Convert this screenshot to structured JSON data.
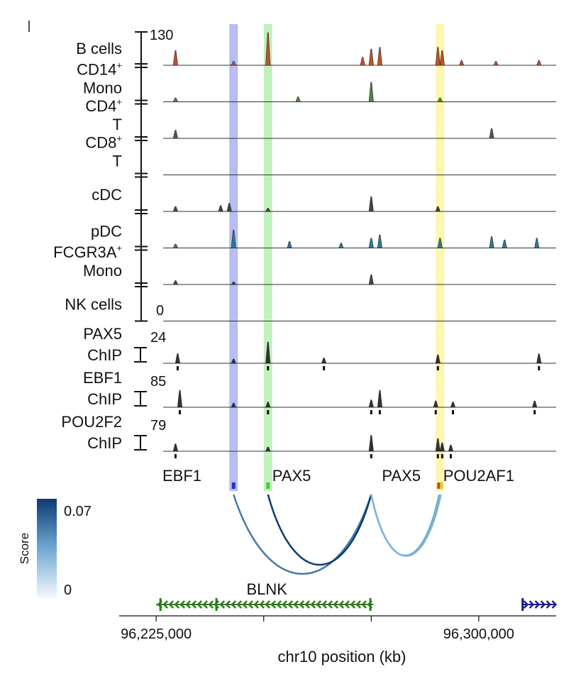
{
  "chart_data": {
    "type": "genome_tracks",
    "xlabel": "chr10 position (kb)",
    "xlim": [
      96223000,
      96318000
    ],
    "x_ticks": [
      {
        "value": 96225000,
        "label": "96,225,000"
      },
      {
        "value": 96300000,
        "label": "96,300,000"
      }
    ],
    "x_minor_ticks": [
      96250000,
      96275000
    ],
    "atac_group": {
      "ymax_label": "130",
      "ymin_label": "0",
      "tracks": [
        {
          "name": "B cells",
          "name_parts": [
            [
              "B cells",
              ""
            ]
          ],
          "color": "#c0522a",
          "peaks": [
            [
              96229500,
              0.45
            ],
            [
              96243000,
              0.12
            ],
            [
              96251000,
              1.0
            ],
            [
              96273000,
              0.25
            ],
            [
              96275000,
              0.5
            ],
            [
              96277000,
              0.55
            ],
            [
              96290500,
              0.55
            ],
            [
              96291500,
              0.45
            ],
            [
              96296000,
              0.15
            ],
            [
              96304000,
              0.12
            ],
            [
              96314000,
              0.15
            ]
          ]
        },
        {
          "name": "CD14+ Mono",
          "name_parts": [
            [
              "CD14",
              "+"
            ],
            [
              "Mono",
              ""
            ]
          ],
          "color": "#4a8a3a",
          "peaks": [
            [
              96229500,
              0.12
            ],
            [
              96258000,
              0.15
            ],
            [
              96275000,
              0.6
            ],
            [
              96291000,
              0.12
            ]
          ]
        },
        {
          "name": "CD4+ T",
          "name_parts": [
            [
              "CD4",
              "+"
            ],
            [
              "T",
              ""
            ]
          ],
          "color": "#555555",
          "peaks": [
            [
              96229500,
              0.25
            ],
            [
              96303000,
              0.3
            ]
          ]
        },
        {
          "name": "CD8+ T",
          "name_parts": [
            [
              "CD8",
              "+"
            ],
            [
              "T",
              ""
            ]
          ],
          "color": "#555555",
          "peaks": []
        },
        {
          "name": "cDC",
          "name_parts": [
            [
              "cDC",
              ""
            ]
          ],
          "color": "#3d4a3a",
          "peaks": [
            [
              96229500,
              0.15
            ],
            [
              96240000,
              0.18
            ],
            [
              96242000,
              0.25
            ],
            [
              96275000,
              0.45
            ],
            [
              96251000,
              0.1
            ],
            [
              96290500,
              0.15
            ]
          ]
        },
        {
          "name": "pDC",
          "name_parts": [
            [
              "pDC",
              ""
            ]
          ],
          "color": "#2a7a9a",
          "peaks": [
            [
              96229500,
              0.12
            ],
            [
              96243000,
              0.55
            ],
            [
              96256000,
              0.2
            ],
            [
              96268000,
              0.15
            ],
            [
              96275000,
              0.3
            ],
            [
              96277000,
              0.4
            ],
            [
              96291000,
              0.3
            ],
            [
              96303000,
              0.35
            ],
            [
              96306000,
              0.25
            ],
            [
              96313500,
              0.3
            ]
          ]
        },
        {
          "name": "FCGR3A+ Mono",
          "name_parts": [
            [
              "FCGR3A",
              "+"
            ],
            [
              "Mono",
              ""
            ]
          ],
          "color": "#3d4a3a",
          "peaks": [
            [
              96229500,
              0.12
            ],
            [
              96243000,
              0.08
            ],
            [
              96275000,
              0.3
            ]
          ]
        },
        {
          "name": "NK cells",
          "name_parts": [
            [
              "NK cells",
              ""
            ]
          ],
          "color": "#555555",
          "peaks": []
        }
      ]
    },
    "chip_tracks": [
      {
        "name": "PAX5 ChIP",
        "name_parts": [
          "PAX5",
          "ChIP"
        ],
        "ymax_label": "24",
        "color": "#333333",
        "peaks": [
          [
            96230000,
            0.45
          ],
          [
            96243000,
            0.2
          ],
          [
            96251000,
            1.0
          ],
          [
            96264000,
            0.25
          ],
          [
            96290500,
            0.4
          ],
          [
            96314000,
            0.45
          ]
        ],
        "sites": [
          96230000,
          96251000,
          96264000,
          96290500,
          96314000
        ]
      },
      {
        "name": "EBF1 ChIP",
        "name_parts": [
          "EBF1",
          "ChIP"
        ],
        "ymax_label": "85",
        "color": "#333333",
        "peaks": [
          [
            96230500,
            0.8
          ],
          [
            96243000,
            0.2
          ],
          [
            96251000,
            0.25
          ],
          [
            96275000,
            0.35
          ],
          [
            96277000,
            0.8
          ],
          [
            96290000,
            0.3
          ],
          [
            96294000,
            0.25
          ],
          [
            96313000,
            0.3
          ]
        ],
        "sites": [
          96230500,
          96251000,
          96275000,
          96277000,
          96290000,
          96294000,
          96313000
        ]
      },
      {
        "name": "POU2F2 ChIP",
        "name_parts": [
          "POU2F2",
          "ChIP"
        ],
        "ymax_label": "79",
        "color": "#333333",
        "peaks": [
          [
            96229500,
            0.35
          ],
          [
            96251000,
            0.2
          ],
          [
            96275000,
            0.75
          ],
          [
            96290500,
            0.6
          ],
          [
            96291500,
            0.4
          ],
          [
            96293500,
            0.3
          ]
        ],
        "sites": [
          96229500,
          96275000,
          96290500,
          96291500,
          96293500
        ]
      }
    ],
    "highlights": [
      {
        "x": 96243000,
        "color": "#aab0f0"
      },
      {
        "x": 96251000,
        "color": "#b6efb0"
      },
      {
        "x": 96291000,
        "color": "#fbf5a0"
      }
    ],
    "motif_labels": [
      {
        "label": "EBF1",
        "x": 96231000
      },
      {
        "label": "PAX5",
        "x": 96256500
      },
      {
        "label": "PAX5",
        "x": 96282000
      },
      {
        "label": "POU2AF1",
        "x": 96300000
      }
    ],
    "motif_markers": [
      {
        "x": 96243000,
        "color": "#2233cc"
      },
      {
        "x": 96251000,
        "color": "#44cc33"
      },
      {
        "x": 96291000,
        "color": "#cc4422",
        "color2": "#ddcc22"
      }
    ],
    "links": [
      {
        "from": 96243000,
        "to": 96275000,
        "score": 0.05
      },
      {
        "from": 96251000,
        "to": 96275000,
        "score": 0.07
      },
      {
        "from": 96275000,
        "to": 96290800,
        "score": 0.035
      },
      {
        "from": 96275000,
        "to": 96291200,
        "score": 0.03
      }
    ],
    "score_legend": {
      "title": "Score",
      "max_label": "0.07",
      "min_label": "0",
      "min": 0,
      "max": 0.07
    },
    "genes": [
      {
        "name": "BLNK",
        "start": 96225000,
        "end": 96275500,
        "strand": "-",
        "color": "#2a7a1a",
        "exons": [
          96226000,
          96239000,
          96274800
        ]
      },
      {
        "name": "",
        "start": 96310000,
        "end": 96318000,
        "strand": "+",
        "color": "#1a1a8a",
        "exons": [
          96310200
        ]
      }
    ]
  }
}
